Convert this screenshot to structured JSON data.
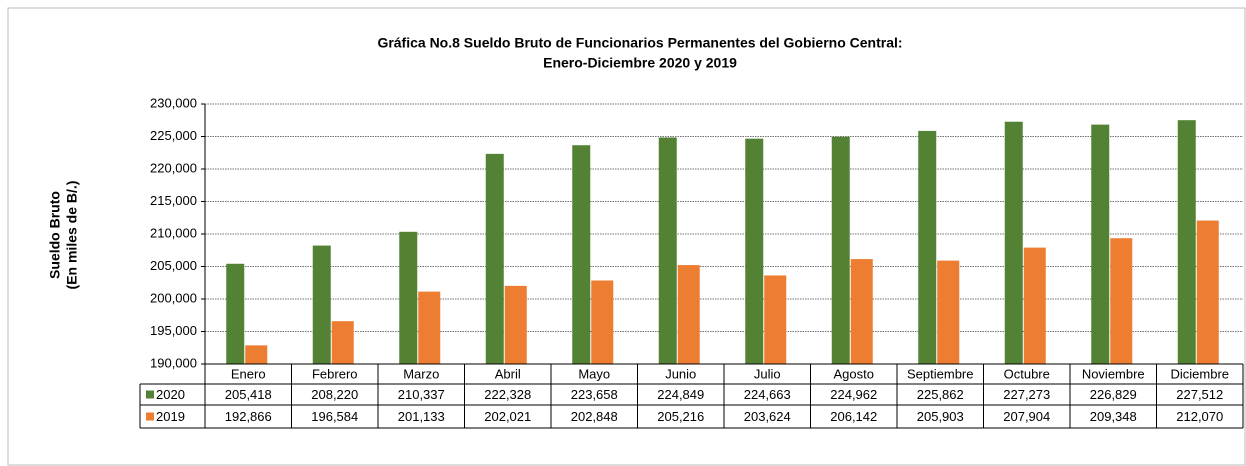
{
  "chart_data": {
    "type": "bar",
    "title": "Gráfica No.8 Sueldo Bruto de Funcionarios Permanentes del Gobierno Central:",
    "subtitle": "Enero-Diciembre 2020 y 2019",
    "ylabel": [
      "Sueldo Bruto",
      "(En miles de B/.)"
    ],
    "categories": [
      "Enero",
      "Febrero",
      "Marzo",
      "Abril",
      "Mayo",
      "Junio",
      "Julio",
      "Agosto",
      "Septiembre",
      "Octubre",
      "Noviembre",
      "Diciembre"
    ],
    "series": [
      {
        "name": "2020",
        "color": "#548235",
        "values": [
          205418,
          208220,
          210337,
          222328,
          223658,
          224849,
          224663,
          224962,
          225862,
          227273,
          226829,
          227512
        ],
        "value_labels": [
          "205,418",
          "208,220",
          "210,337",
          "222,328",
          "223,658",
          "224,849",
          "224,663",
          "224,962",
          "225,862",
          "227,273",
          "226,829",
          "227,512"
        ]
      },
      {
        "name": "2019",
        "color": "#ed7d31",
        "values": [
          192866,
          196584,
          201133,
          202021,
          202848,
          205216,
          203624,
          206142,
          205903,
          207904,
          209348,
          212070
        ],
        "value_labels": [
          "192,866",
          "196,584",
          "201,133",
          "202,021",
          "202,848",
          "205,216",
          "203,624",
          "206,142",
          "205,903",
          "207,904",
          "209,348",
          "212,070"
        ]
      }
    ],
    "ylim": [
      190000,
      230000
    ],
    "yticks": [
      {
        "value": 190000,
        "label": "190,000"
      },
      {
        "value": 195000,
        "label": "195,000"
      },
      {
        "value": 200000,
        "label": "200,000"
      },
      {
        "value": 205000,
        "label": "205,000"
      },
      {
        "value": 210000,
        "label": "210,000"
      },
      {
        "value": 215000,
        "label": "215,000"
      },
      {
        "value": 220000,
        "label": "220,000"
      },
      {
        "value": 225000,
        "label": "225,000"
      },
      {
        "value": 230000,
        "label": "230,000"
      }
    ],
    "grid": true
  }
}
